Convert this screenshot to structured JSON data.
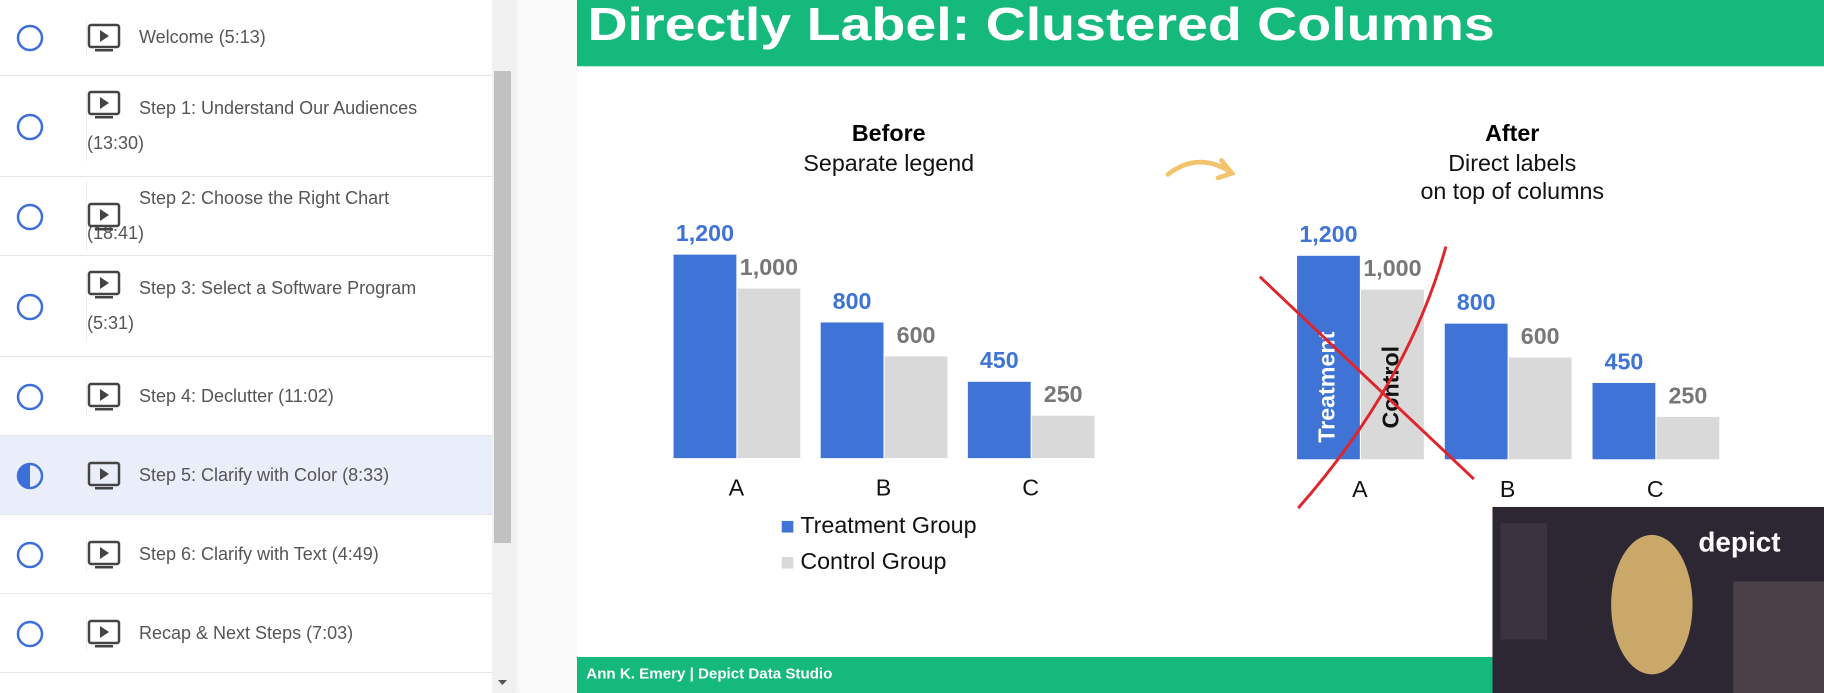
{
  "sidebar": {
    "current_item": 5,
    "items": [
      "Welcome (5:13)",
      "Step 1: Understand Our Audiences (13:30)",
      "Step 2: Choose the Right Chart (18:41)",
      "Step 3: Select a Software Program (5:31)",
      "Step 4: Declutter (11:02)",
      "Step 5: Clarify with Color (8:33)",
      "Step 6: Clarify with Text (4:49)",
      "Recap & Next Steps (7:03)"
    ]
  },
  "slide": {
    "title": "Directly Label: Clustered Columns",
    "footer": "Ann K. Emery | Depict Data Studio",
    "video_overlay": "depict"
  },
  "chart_data": [
    {
      "type": "bar",
      "title": "Before",
      "subtitle": [
        "Separate legend"
      ],
      "legend": "bottom",
      "categories": [
        "A",
        "B",
        "C"
      ],
      "series": [
        {
          "name": "Treatment Group",
          "color": "#3f74d6",
          "values": [
            1200,
            800,
            450
          ],
          "value_labels": [
            "1,200",
            "800",
            "450"
          ]
        },
        {
          "name": "Control Group",
          "color": "#d9d9d9",
          "values": [
            1000,
            600,
            250
          ],
          "value_labels": [
            "1,000",
            "600",
            "250"
          ]
        }
      ]
    },
    {
      "type": "bar",
      "title": "After",
      "subtitle": [
        "Direct labels",
        "on top of columns"
      ],
      "legend": "inside",
      "categories": [
        "A",
        "B",
        "C"
      ],
      "series": [
        {
          "name": "Treatment",
          "color": "#3f74d6",
          "values": [
            1200,
            800,
            450
          ],
          "value_labels": [
            "1,200",
            "800",
            "450"
          ]
        },
        {
          "name": "Control",
          "color": "#d9d9d9",
          "values": [
            1000,
            600,
            250
          ],
          "value_labels": [
            "1,000",
            "600",
            "250"
          ]
        }
      ]
    }
  ]
}
